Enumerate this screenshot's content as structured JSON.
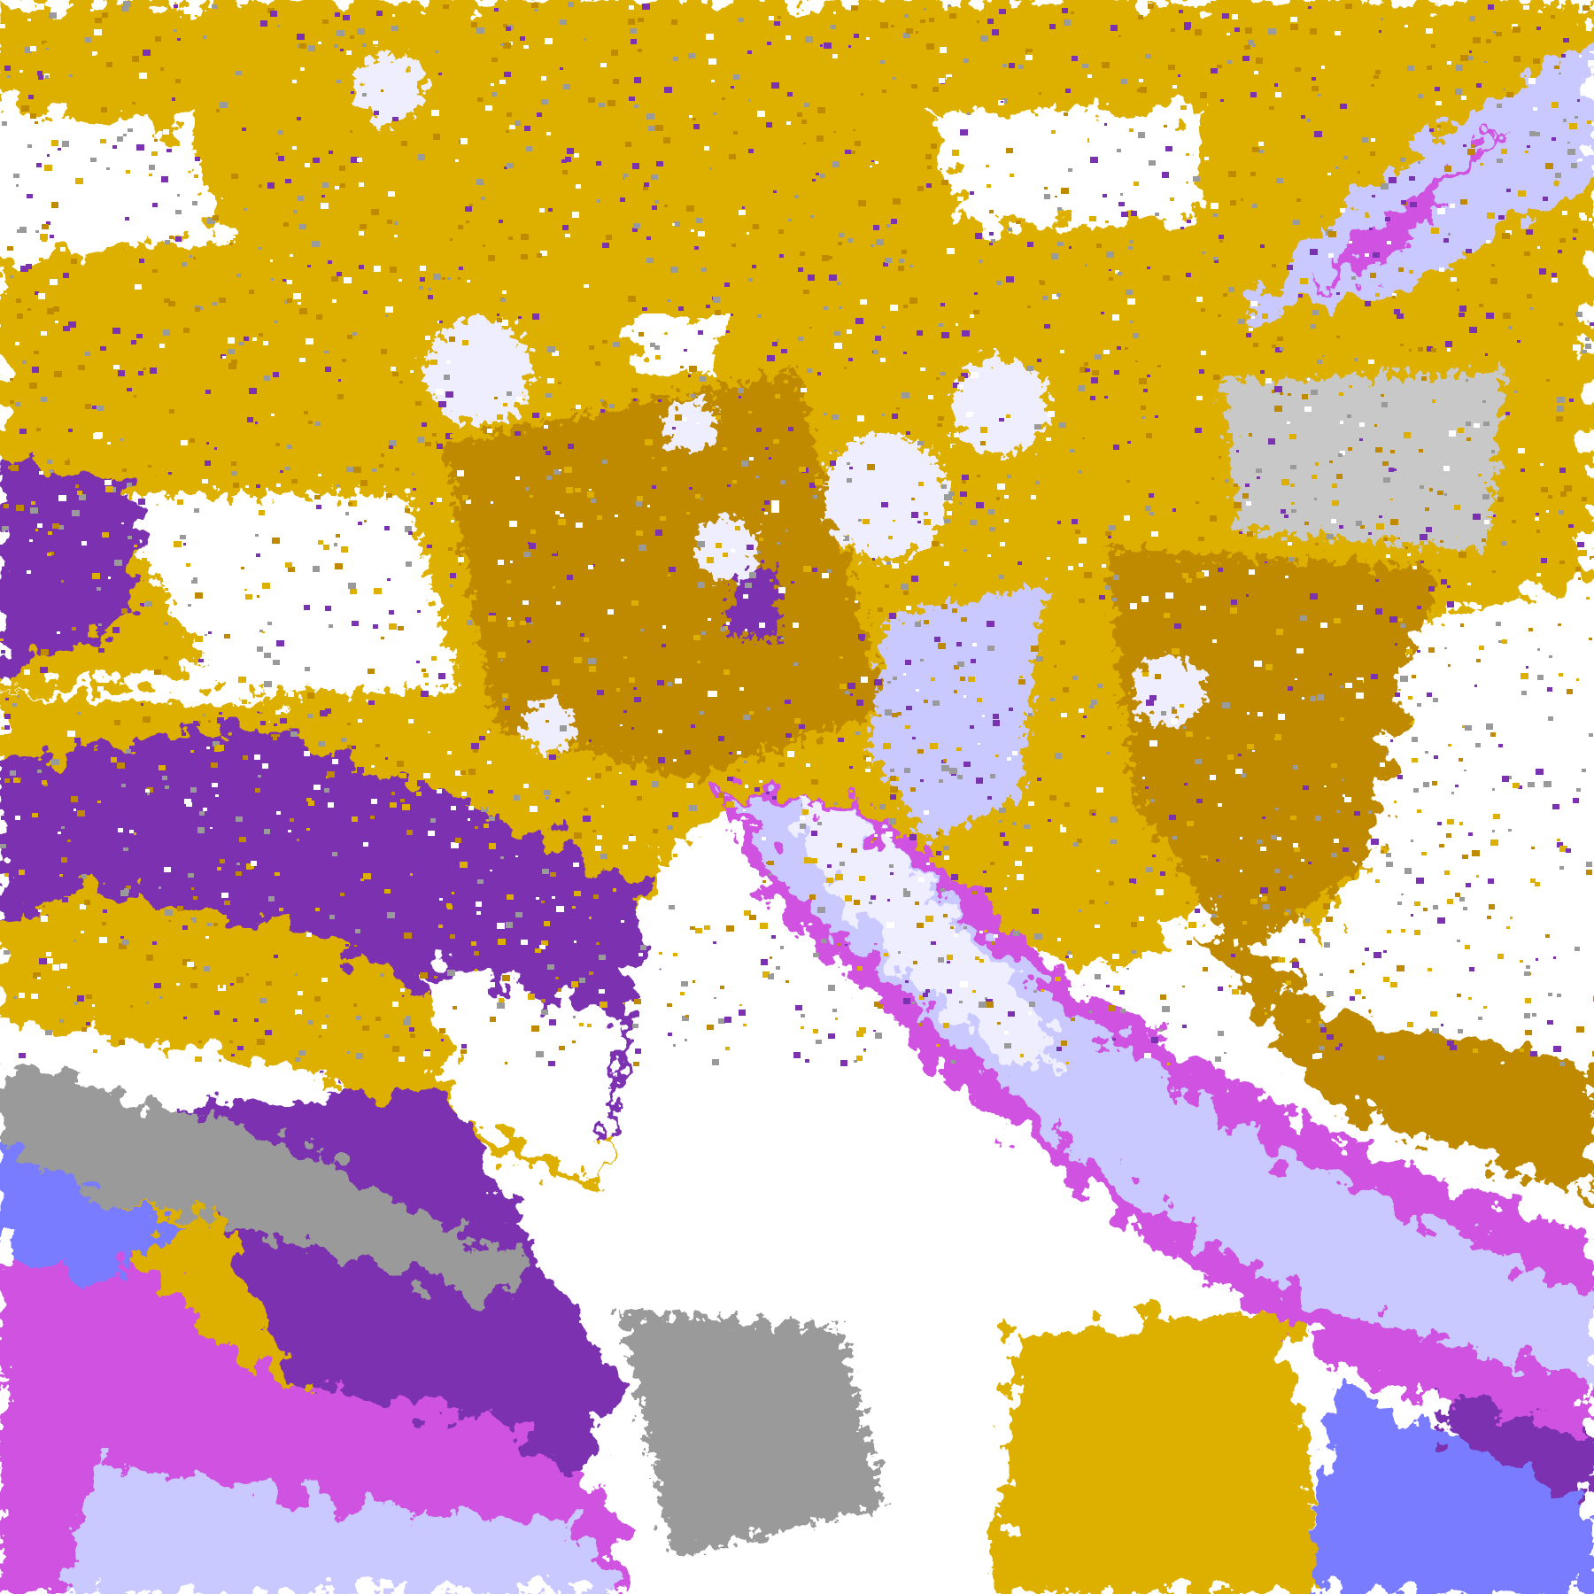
{
  "map": {
    "palette": {
      "clear": "#ffffff",
      "gold": "#ddb000",
      "dark_gold": "#bf8a00",
      "purple": "#7b32b0",
      "magenta": "#cf52e0",
      "periwinkle": "#7a7cff",
      "lavender": "#c9c9ff",
      "pale": "#eeeeff",
      "grey": "#9a9a9a",
      "light_grey": "#c8c8c8"
    }
  }
}
